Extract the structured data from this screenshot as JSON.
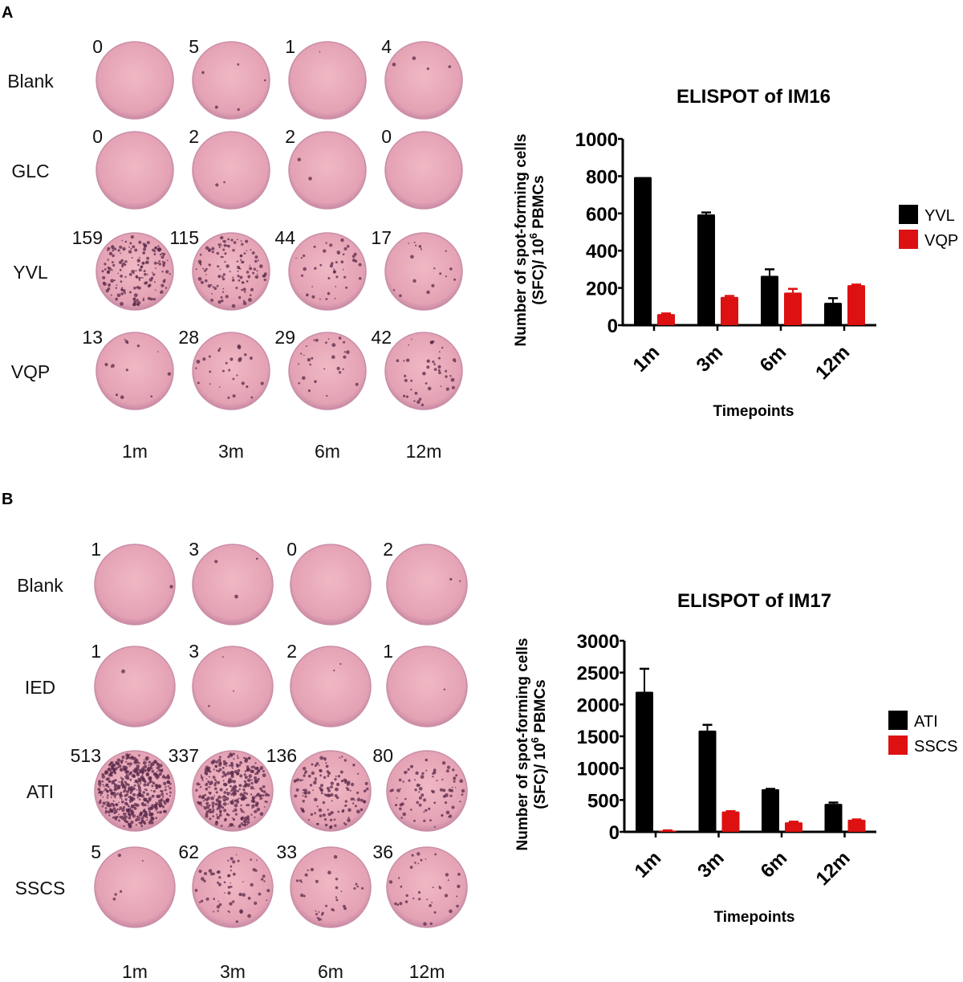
{
  "panels": [
    {
      "letter": "A",
      "rows": [
        "Blank",
        "GLC",
        "YVL",
        "VQP"
      ],
      "columns": [
        "1m",
        "3m",
        "6m",
        "12m"
      ],
      "counts": [
        [
          "0",
          "5",
          "1",
          "4"
        ],
        [
          "0",
          "2",
          "2",
          "0"
        ],
        [
          "159",
          "115",
          "44",
          "17"
        ],
        [
          "13",
          "28",
          "29",
          "42"
        ]
      ]
    },
    {
      "letter": "B",
      "rows": [
        "Blank",
        "IED",
        "ATI",
        "SSCS"
      ],
      "columns": [
        "1m",
        "3m",
        "6m",
        "12m"
      ],
      "counts": [
        [
          "1",
          "3",
          "0",
          "2"
        ],
        [
          "1",
          "3",
          "2",
          "1"
        ],
        [
          "513",
          "337",
          "136",
          "80"
        ],
        [
          "5",
          "62",
          "33",
          "36"
        ]
      ]
    }
  ],
  "chart_data": [
    {
      "type": "bar",
      "title": "ELISPOT of IM16",
      "xlabel": "Timepoints",
      "ylabel_line1": "Number of spot-forming cells",
      "ylabel_line2": "(SFC)/ 10",
      "ylabel_sup": "6",
      "ylabel_end": " PBMCs",
      "categories": [
        "1m",
        "3m",
        "6m",
        "12m"
      ],
      "ylim": [
        0,
        1000
      ],
      "yticks": [
        "0",
        "200",
        "400",
        "600",
        "800",
        "1000"
      ],
      "legend_position": "right",
      "series": [
        {
          "name": "YVL",
          "color": "#000000",
          "values": [
            795,
            595,
            265,
            120
          ],
          "errors": [
            0,
            10,
            35,
            25
          ]
        },
        {
          "name": "VQP",
          "color": "#dd1111",
          "values": [
            60,
            152,
            175,
            215
          ],
          "errors": [
            3,
            5,
            20,
            3
          ]
        }
      ]
    },
    {
      "type": "bar",
      "title": "ELISPOT of IM17",
      "xlabel": "Timepoints",
      "ylabel_line1": "Number of spot-forming cells",
      "ylabel_line2": "(SFC)/ 10",
      "ylabel_sup": "6",
      "ylabel_end": " PBMCs",
      "categories": [
        "1m",
        "3m",
        "6m",
        "12m"
      ],
      "ylim": [
        0,
        3000
      ],
      "yticks": [
        "0",
        "500",
        "1000",
        "1500",
        "2000",
        "2500",
        "3000"
      ],
      "legend_position": "right",
      "series": [
        {
          "name": "ATI",
          "color": "#000000",
          "values": [
            2200,
            1590,
            670,
            440
          ],
          "errors": [
            360,
            90,
            5,
            20
          ]
        },
        {
          "name": "SSCS",
          "color": "#dd1111",
          "values": [
            20,
            320,
            150,
            190
          ],
          "errors": [
            3,
            5,
            10,
            5
          ]
        }
      ]
    }
  ]
}
